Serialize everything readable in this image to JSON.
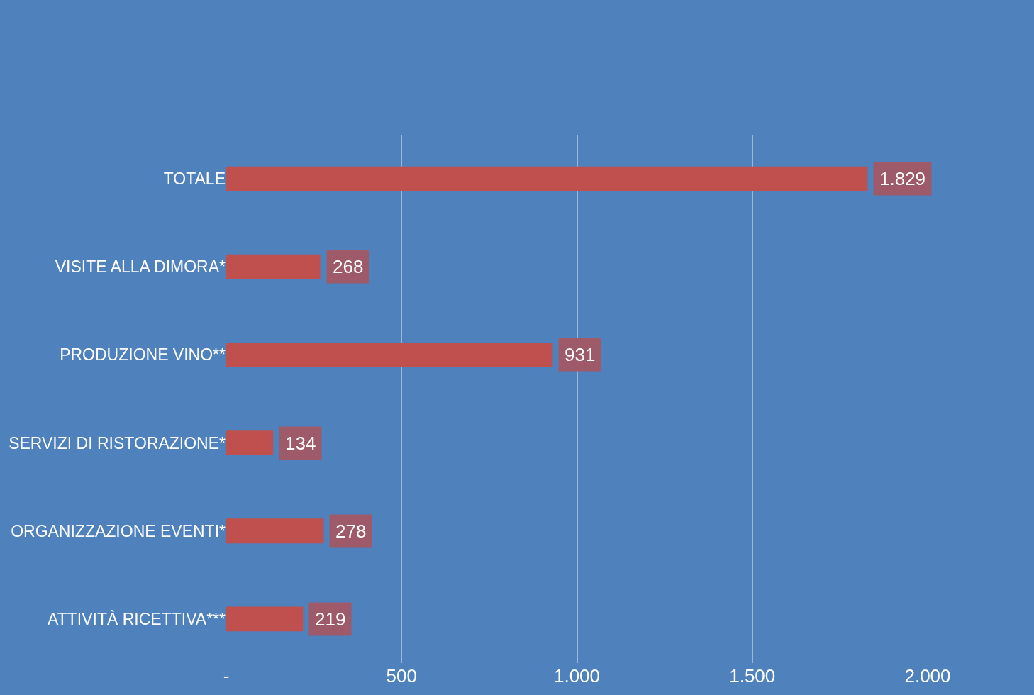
{
  "chart_data": {
    "type": "bar",
    "orientation": "horizontal",
    "categories": [
      "TOTALE",
      "VISITE ALLA DIMORA*",
      "PRODUZIONE VINO**",
      "SERVIZI DI RISTORAZIONE*",
      "ORGANIZZAZIONE EVENTI*",
      "ATTIVITÀ RICETTIVA***"
    ],
    "values": [
      1829,
      268,
      931,
      134,
      278,
      219
    ],
    "value_labels": [
      "1.829",
      "268",
      "931",
      "134",
      "278",
      "219"
    ],
    "color": "#c0504d",
    "xlim": [
      0,
      2000
    ],
    "xticks": [
      {
        "value": 0,
        "label": "-"
      },
      500,
      {
        "value": 1000,
        "label": "1.000"
      },
      {
        "value": 1500,
        "label": "1.500"
      },
      {
        "value": 2000,
        "label": "2.000"
      }
    ],
    "grid": "x",
    "legend": false
  }
}
